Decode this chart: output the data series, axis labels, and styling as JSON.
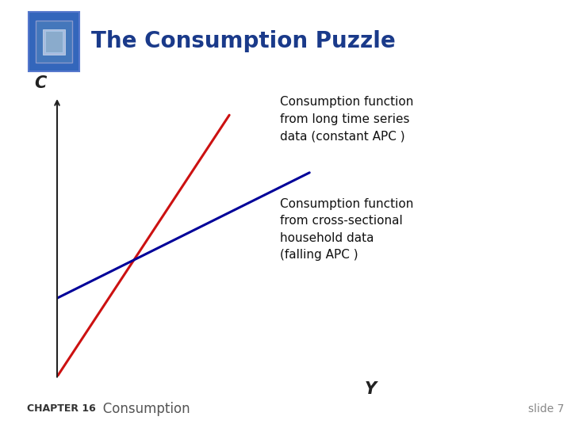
{
  "title": "The Consumption Puzzle",
  "title_color": "#1a3a8a",
  "title_fontsize": 20,
  "bg_color": "#ffffff",
  "left_bar_color": "#a8d8a8",
  "axis_color": "#222222",
  "c_label": "C",
  "y_label": "Y",
  "red_line": {
    "x": [
      0.0,
      0.58
    ],
    "y": [
      0.0,
      1.0
    ],
    "color": "#cc1111",
    "lw": 2.2
  },
  "blue_line": {
    "x": [
      0.0,
      0.85
    ],
    "y": [
      0.3,
      0.78
    ],
    "color": "#000099",
    "lw": 2.2
  },
  "box1_text": "Consumption function\nfrom long time series\ndata (constant APC )",
  "box1_bg": "#f9d0d0",
  "box2_text": "Consumption function\nfrom cross-sectional\nhousehold data\n(falling APC )",
  "box2_bg": "#c0eef0",
  "footer_left_bold": "CHAPTER 16",
  "footer_left_normal": "   Consumption",
  "footer_right": "slide 7",
  "footer_fontsize": 10,
  "logo_outer": "#2255aa",
  "logo_inner": "#6688cc",
  "logo_center": "#334466"
}
